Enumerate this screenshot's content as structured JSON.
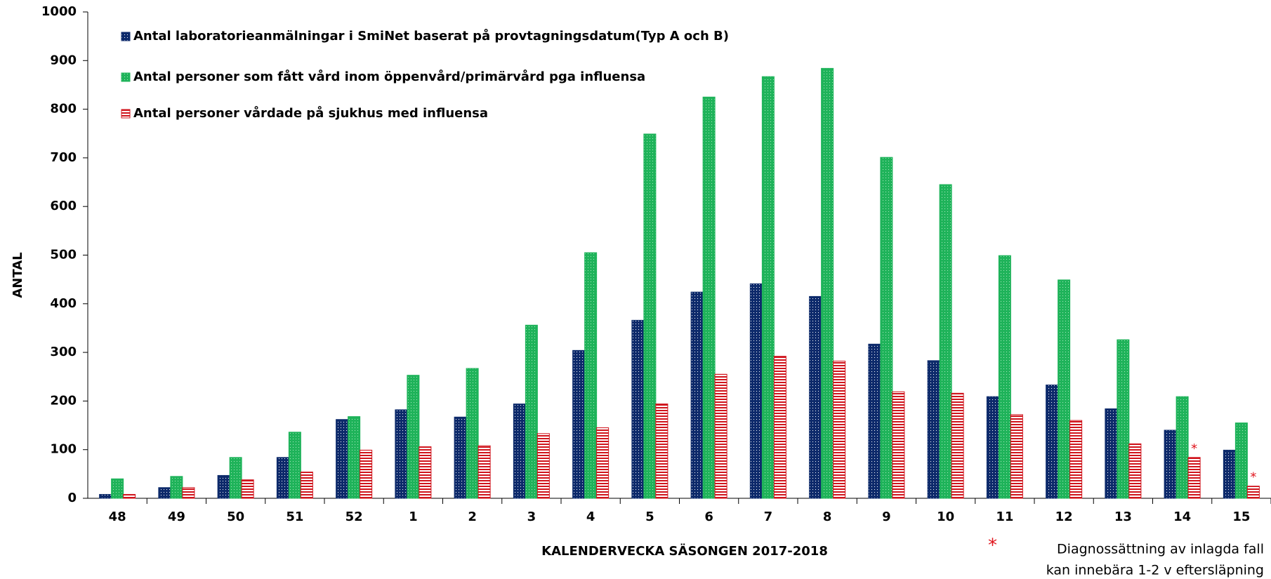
{
  "chart_data": {
    "type": "bar",
    "x_label": "KALENDERVECKA SÄSONGEN 2017-2018",
    "y_label": "ANTAL",
    "categories": [
      "48",
      "49",
      "50",
      "51",
      "52",
      "1",
      "2",
      "3",
      "4",
      "5",
      "6",
      "7",
      "8",
      "9",
      "10",
      "11",
      "12",
      "13",
      "14",
      "15"
    ],
    "series": [
      {
        "name": "Antal laboratorieanmälningar i SmiNet baserat på provtagningsdatum(Typ A och B)",
        "color": "#0d2a6b",
        "values": [
          8,
          22,
          47,
          84,
          162,
          182,
          167,
          194,
          304,
          366,
          424,
          441,
          415,
          317,
          283,
          209,
          233,
          184,
          140,
          99
        ]
      },
      {
        "name": "Antal personer som fått vård inom öppenvård/primärvård pga influensa",
        "color": "#1fb35a",
        "values": [
          40,
          45,
          84,
          136,
          168,
          253,
          267,
          356,
          505,
          749,
          825,
          867,
          884,
          701,
          645,
          499,
          449,
          326,
          209,
          155
        ]
      },
      {
        "name": "Antal personer vårdade på sjukhus med influensa",
        "color": "#d0141c",
        "values": [
          8,
          22,
          38,
          54,
          99,
          106,
          108,
          133,
          145,
          194,
          255,
          292,
          282,
          219,
          216,
          172,
          160,
          112,
          84,
          25
        ],
        "markers": [
          null,
          null,
          null,
          null,
          null,
          null,
          null,
          null,
          null,
          null,
          null,
          null,
          null,
          null,
          null,
          null,
          null,
          null,
          "*",
          "*"
        ]
      }
    ],
    "ylim": [
      0,
      1000
    ],
    "yticks": [
      0,
      100,
      200,
      300,
      400,
      500,
      600,
      700,
      800,
      900,
      1000
    ],
    "footnote": {
      "marker": "*",
      "lines": [
        "Diagnossättning av inlagda fall",
        "kan innebära 1-2 v eftersläpning"
      ]
    }
  }
}
